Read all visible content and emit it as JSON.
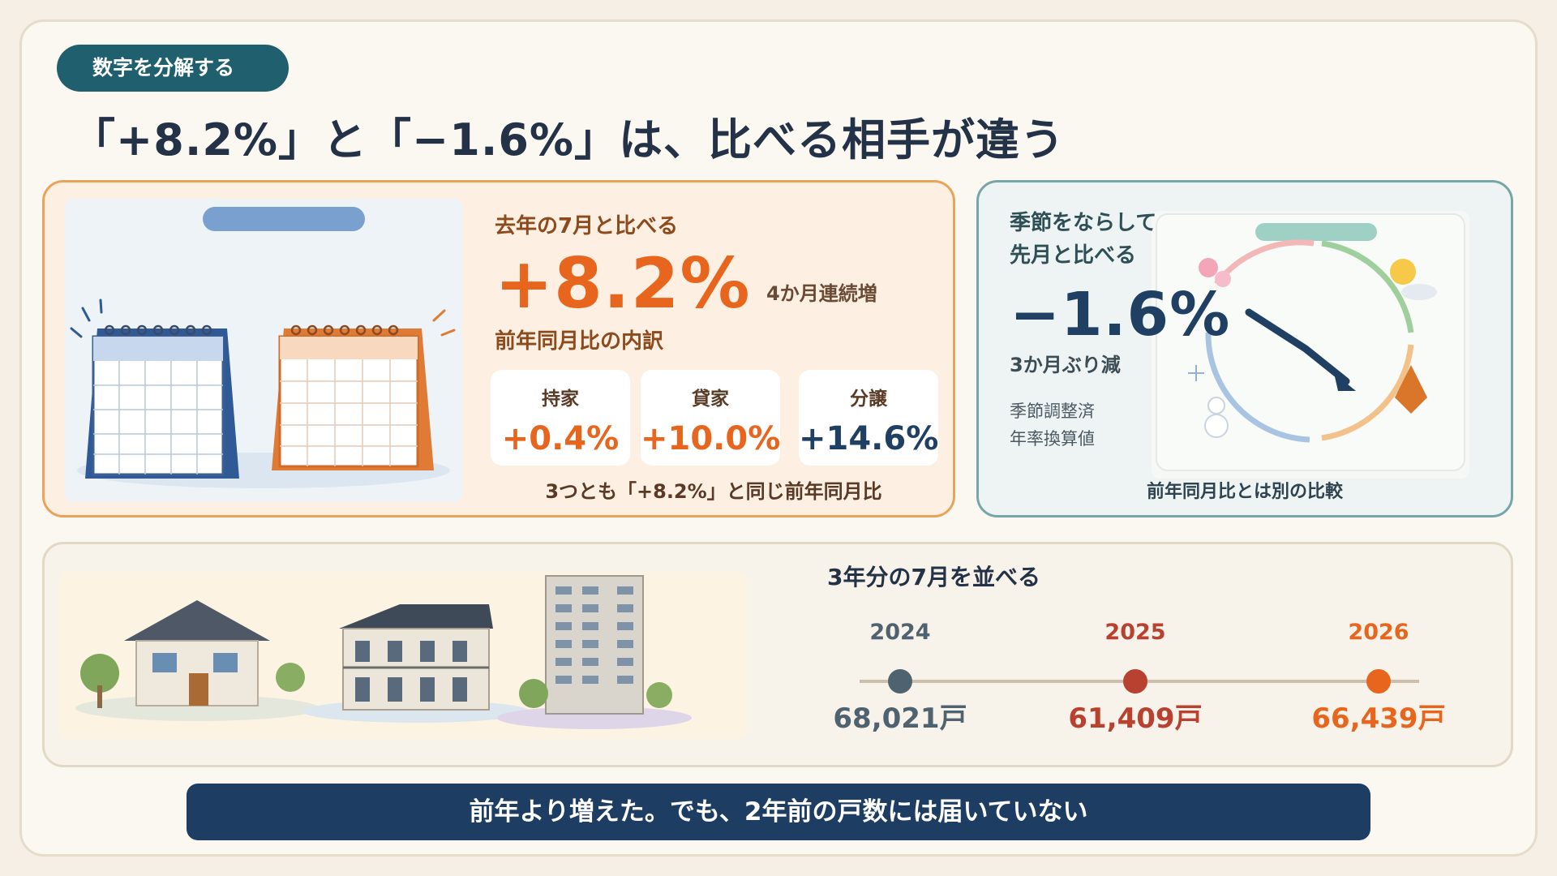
{
  "tag": "数字を分解する",
  "headline": "「+8.2%」と「−1.6%」は、比べる相手が違う",
  "yoy": {
    "label": "去年の7月と比べる",
    "value": "+8.2%",
    "streak": "4か月連続増",
    "breakdown_title": "前年同月比の内訳",
    "items": [
      {
        "title": "持家",
        "value": "+0.4%",
        "color": "#e8651e"
      },
      {
        "title": "貸家",
        "value": "+10.0%",
        "color": "#e8651e"
      },
      {
        "title": "分譲",
        "value": "+14.6%",
        "color": "#1f3f63"
      }
    ],
    "footnote": "3つとも「+8.2%」と同じ前年同月比"
  },
  "mom": {
    "label_line1": "季節をならして",
    "label_line2": "先月と比べる",
    "value": "−1.6%",
    "note": "3か月ぶり減",
    "adjust_line1": "季節調整済",
    "adjust_line2": "年率換算値",
    "footnote": "前年同月比とは別の比較"
  },
  "timeline": {
    "title": "3年分の7月を並べる",
    "points": [
      {
        "year": "2024",
        "count": "68,021戸",
        "color": "#4f6270"
      },
      {
        "year": "2025",
        "count": "61,409戸",
        "color": "#b8412f"
      },
      {
        "year": "2026",
        "count": "66,439戸",
        "color": "#e8651e"
      }
    ]
  },
  "conclusion": "前年より増えた。でも、2年前の戸数には届いていない",
  "icons": {
    "calendar": "calendar-icon",
    "season_cycle": "season-cycle-icon",
    "houses": "house-icon"
  }
}
